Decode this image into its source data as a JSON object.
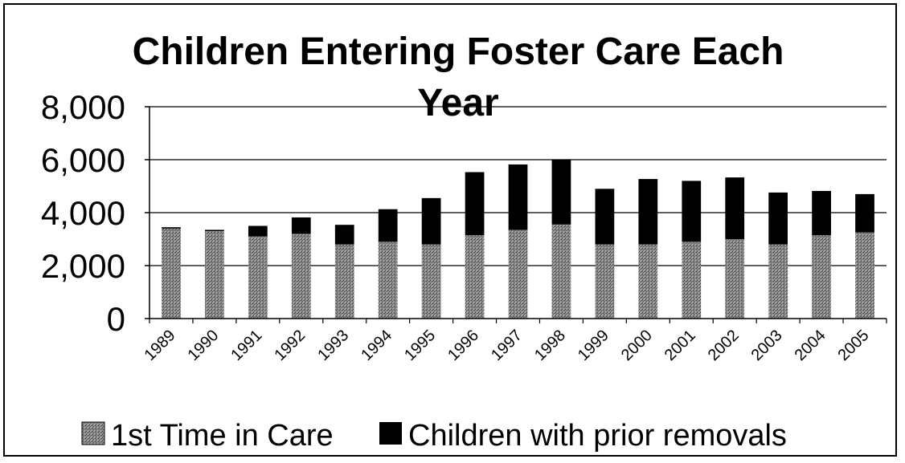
{
  "chart_data": {
    "type": "bar",
    "stacked": true,
    "title": "Children Entering Foster Care Each Year",
    "title_lines": [
      "Children Entering Foster Care Each",
      "Year"
    ],
    "xlabel": "",
    "ylabel": "",
    "categories": [
      "1989",
      "1990",
      "1991",
      "1992",
      "1993",
      "1994",
      "1995",
      "1996",
      "1997",
      "1998",
      "1999",
      "2000",
      "2001",
      "2002",
      "2003",
      "2004",
      "2005"
    ],
    "series": [
      {
        "name": "1st Time in Care",
        "color": "#7a7a7a",
        "pattern": "speckled-gray",
        "values": [
          3400,
          3300,
          3100,
          3200,
          2800,
          2900,
          2800,
          3150,
          3350,
          3550,
          2800,
          2800,
          2900,
          3000,
          2800,
          3150,
          3250
        ]
      },
      {
        "name": "Children with prior removals",
        "color": "#000000",
        "pattern": "solid-black",
        "values": [
          50,
          50,
          400,
          620,
          740,
          1230,
          1750,
          2380,
          2470,
          2450,
          2100,
          2470,
          2300,
          2330,
          1960,
          1670,
          1450
        ]
      }
    ],
    "ylim": [
      0,
      8000
    ],
    "yticks": [
      0,
      2000,
      4000,
      6000,
      8000
    ],
    "ytick_labels": [
      "0",
      "2,000",
      "4,000",
      "6,000",
      "8,000"
    ],
    "grid": "horizontal",
    "legend_position": "bottom"
  }
}
